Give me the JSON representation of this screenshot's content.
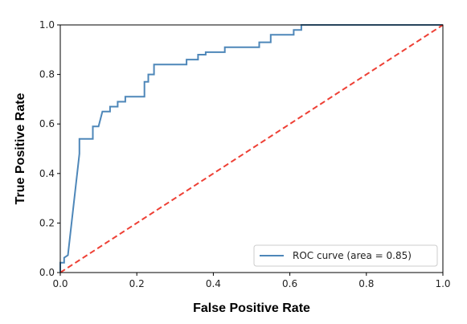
{
  "chart_data": {
    "type": "line",
    "xlabel": "False Positive Rate",
    "ylabel": "True Positive Rate",
    "xlim": [
      0.0,
      1.0
    ],
    "ylim": [
      0.0,
      1.0
    ],
    "xticks": [
      "0.0",
      "0.2",
      "0.4",
      "0.6",
      "0.8",
      "1.0"
    ],
    "yticks": [
      "0.0",
      "0.2",
      "0.4",
      "0.6",
      "0.8",
      "1.0"
    ],
    "grid": false,
    "legend": "lower-right",
    "series": [
      {
        "name": "ROC curve (area = 0.85)",
        "color": "#4e87b9",
        "style": "solid",
        "points": [
          [
            0.0,
            0.0
          ],
          [
            0.0,
            0.04
          ],
          [
            0.01,
            0.04
          ],
          [
            0.01,
            0.06
          ],
          [
            0.02,
            0.07
          ],
          [
            0.05,
            0.48
          ],
          [
            0.05,
            0.54
          ],
          [
            0.085,
            0.54
          ],
          [
            0.085,
            0.59
          ],
          [
            0.1,
            0.59
          ],
          [
            0.11,
            0.65
          ],
          [
            0.13,
            0.65
          ],
          [
            0.13,
            0.67
          ],
          [
            0.15,
            0.67
          ],
          [
            0.15,
            0.69
          ],
          [
            0.17,
            0.69
          ],
          [
            0.17,
            0.71
          ],
          [
            0.22,
            0.71
          ],
          [
            0.22,
            0.77
          ],
          [
            0.23,
            0.77
          ],
          [
            0.23,
            0.8
          ],
          [
            0.245,
            0.8
          ],
          [
            0.245,
            0.84
          ],
          [
            0.33,
            0.84
          ],
          [
            0.33,
            0.86
          ],
          [
            0.36,
            0.86
          ],
          [
            0.36,
            0.88
          ],
          [
            0.38,
            0.88
          ],
          [
            0.38,
            0.89
          ],
          [
            0.43,
            0.89
          ],
          [
            0.43,
            0.91
          ],
          [
            0.52,
            0.91
          ],
          [
            0.52,
            0.93
          ],
          [
            0.55,
            0.93
          ],
          [
            0.55,
            0.96
          ],
          [
            0.61,
            0.96
          ],
          [
            0.61,
            0.98
          ],
          [
            0.63,
            0.98
          ],
          [
            0.63,
            1.0
          ],
          [
            1.0,
            1.0
          ]
        ]
      },
      {
        "color": "#ee4035",
        "style": "dashed",
        "points": [
          [
            0.0,
            0.0
          ],
          [
            1.0,
            1.0
          ]
        ]
      }
    ]
  }
}
